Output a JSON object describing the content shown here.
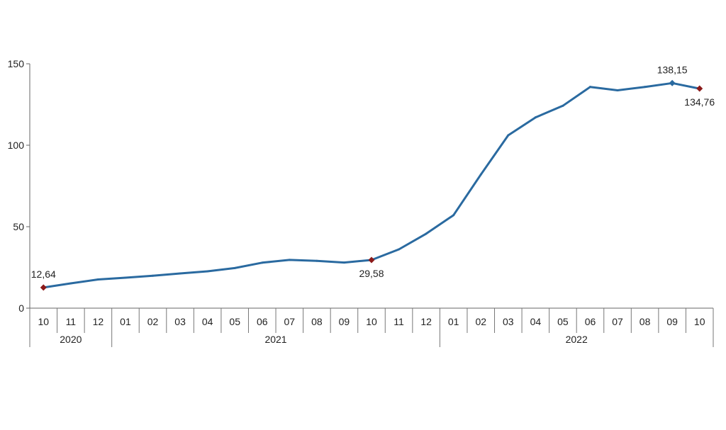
{
  "chart_data": {
    "type": "line",
    "title": "",
    "xlabel": "",
    "ylabel": "",
    "ylim": [
      0,
      150
    ],
    "yticks": [
      "0",
      "50",
      "100",
      "150"
    ],
    "grid": false,
    "categories": [
      "10",
      "11",
      "12",
      "01",
      "02",
      "03",
      "04",
      "05",
      "06",
      "07",
      "08",
      "09",
      "10",
      "11",
      "12",
      "01",
      "02",
      "03",
      "04",
      "05",
      "06",
      "07",
      "08",
      "09",
      "10"
    ],
    "year_groups": [
      {
        "label": "2020",
        "start": 0,
        "end": 2
      },
      {
        "label": "2021",
        "start": 3,
        "end": 14
      },
      {
        "label": "2022",
        "start": 15,
        "end": 24
      }
    ],
    "series": [
      {
        "values": [
          12.64,
          15.2,
          17.6,
          18.7,
          19.9,
          21.3,
          22.6,
          24.6,
          27.9,
          29.6,
          29.0,
          28.0,
          29.58,
          36.1,
          45.7,
          57.1,
          82.0,
          106.1,
          117.1,
          124.2,
          135.8,
          133.7,
          135.8,
          138.15,
          134.76
        ],
        "color": "#2a6aa0"
      }
    ],
    "data_labels": [
      {
        "index": 0,
        "text": "12,64",
        "position": "above"
      },
      {
        "index": 12,
        "text": "29,58",
        "position": "below"
      },
      {
        "index": 23,
        "text": "138,15",
        "position": "above"
      },
      {
        "index": 24,
        "text": "134,76",
        "position": "below"
      }
    ],
    "markers": [
      {
        "index": 0,
        "color": "#8b1a1a"
      },
      {
        "index": 12,
        "color": "#8b1a1a"
      },
      {
        "index": 23,
        "color": "#2a6aa0"
      },
      {
        "index": 24,
        "color": "#8b1a1a"
      }
    ]
  }
}
